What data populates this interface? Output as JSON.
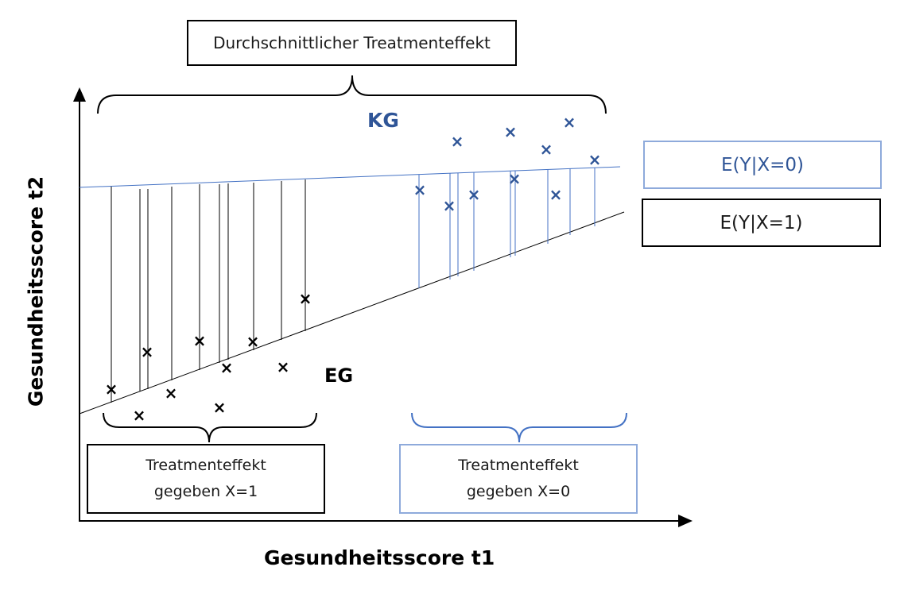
{
  "boxes": {
    "ate": "Durchschnittlicher Treatmenteffekt",
    "ey_x0": "E(Y|X=0)",
    "ey_x1": "E(Y|X=1)",
    "te_x1_line1": "Treatmenteffekt",
    "te_x1_line2": "gegeben X=1",
    "te_x0_line1": "Treatmenteffekt",
    "te_x0_line2": "gegeben X=0"
  },
  "labels": {
    "kg": "KG",
    "eg": "EG"
  },
  "axes": {
    "x_label": "Gesundheitsscore  t1",
    "y_label": "Gesundheitsscore  t2"
  },
  "colors": {
    "black": "#000000",
    "blue_text": "#2f5597",
    "blue_line": "#4472c4",
    "blue_border": "#8eaadb"
  },
  "marker_symbol": "×"
}
